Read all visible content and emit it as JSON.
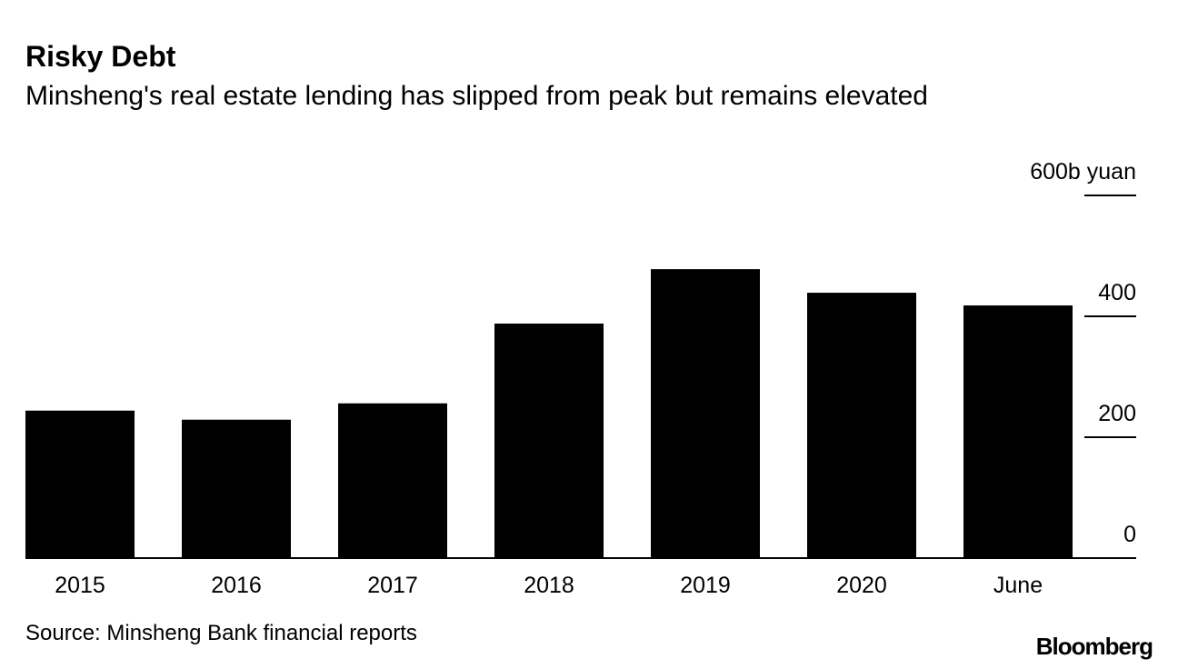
{
  "chart_data": {
    "type": "bar",
    "title": "Risky Debt",
    "subtitle": "Minsheng's real estate lending has slipped from peak but remains elevated",
    "categories": [
      "2015",
      "2016",
      "2017",
      "2018",
      "2019",
      "2020",
      "June"
    ],
    "values": [
      244,
      229,
      256,
      388,
      478,
      439,
      418
    ],
    "color": "#000000",
    "ylim": [
      0,
      600
    ],
    "yticks": [
      0,
      200,
      400,
      {
        "value": 600,
        "label": "600b yuan"
      }
    ],
    "source": "Source: Minsheng Bank financial reports",
    "brand": "Bloomberg"
  }
}
